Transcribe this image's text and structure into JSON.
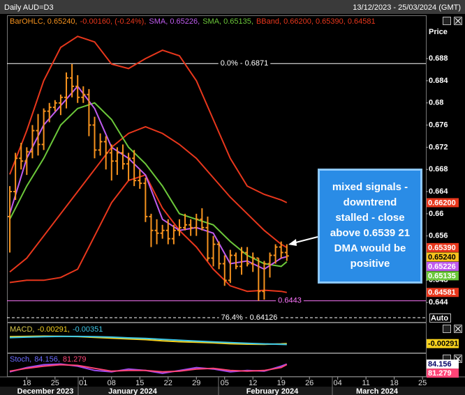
{
  "header": {
    "title": "Daily AUD=D3",
    "range": "13/12/2023 - 25/03/2024 (GMT)"
  },
  "chart_data": [
    {
      "type": "ohlc",
      "legend": [
        {
          "text": "BarOHLC, 0.65240,",
          "color": "#f7931e"
        },
        {
          "text": "-0.00160, (-0.24%),",
          "color": "#e8371c"
        },
        {
          "text": "SMA, 0.65226,",
          "color": "#c05cf0"
        },
        {
          "text": "SMA, 0.65135,",
          "color": "#6cc83a"
        },
        {
          "text": "BBand, 0.66200, 0.65390, 0.64581",
          "color": "#e8371c"
        }
      ],
      "y_axis_label": "Price",
      "auto_label": "Auto",
      "color": "#f7931e",
      "x": [
        0,
        1,
        2,
        3,
        4,
        5,
        6,
        7,
        8,
        9,
        10,
        11,
        12,
        13,
        14,
        15,
        16,
        17,
        18,
        19,
        20,
        21,
        22,
        23,
        24,
        25,
        26,
        27,
        28,
        29,
        30,
        31,
        32,
        33,
        34,
        35,
        36,
        37,
        38,
        39,
        40,
        41,
        42,
        43,
        44,
        45,
        46,
        47,
        48,
        49
      ],
      "open": [
        0.6595,
        0.664,
        0.67,
        0.6695,
        0.6712,
        0.675,
        0.6725,
        0.6785,
        0.6792,
        0.68,
        0.681,
        0.6845,
        0.683,
        0.681,
        0.6815,
        0.676,
        0.6715,
        0.673,
        0.671,
        0.6695,
        0.671,
        0.669,
        0.67,
        0.666,
        0.6655,
        0.6595,
        0.657,
        0.6565,
        0.657,
        0.6555,
        0.657,
        0.6575,
        0.658,
        0.6575,
        0.659,
        0.6575,
        0.652,
        0.6545,
        0.651,
        0.648,
        0.6525,
        0.6505,
        0.653,
        0.651,
        0.652,
        0.646,
        0.651,
        0.6525,
        0.654,
        0.653
      ],
      "high": [
        0.665,
        0.671,
        0.6728,
        0.672,
        0.676,
        0.678,
        0.679,
        0.68,
        0.6805,
        0.6815,
        0.6855,
        0.687,
        0.685,
        0.683,
        0.6825,
        0.6775,
        0.6745,
        0.674,
        0.6725,
        0.672,
        0.6725,
        0.671,
        0.6715,
        0.668,
        0.6665,
        0.66,
        0.659,
        0.658,
        0.659,
        0.658,
        0.659,
        0.66,
        0.659,
        0.66,
        0.661,
        0.6595,
        0.656,
        0.655,
        0.6525,
        0.6535,
        0.653,
        0.654,
        0.654,
        0.653,
        0.652,
        0.6515,
        0.653,
        0.6545,
        0.655,
        0.6545
      ],
      "low": [
        0.653,
        0.6625,
        0.668,
        0.667,
        0.67,
        0.6705,
        0.6715,
        0.6765,
        0.6785,
        0.6778,
        0.679,
        0.681,
        0.68,
        0.68,
        0.674,
        0.67,
        0.6705,
        0.668,
        0.666,
        0.667,
        0.668,
        0.666,
        0.665,
        0.6645,
        0.6585,
        0.654,
        0.6545,
        0.6555,
        0.6545,
        0.6545,
        0.656,
        0.657,
        0.656,
        0.656,
        0.657,
        0.6515,
        0.6505,
        0.65,
        0.647,
        0.6475,
        0.65,
        0.649,
        0.6505,
        0.6495,
        0.6443,
        0.6445,
        0.6485,
        0.651,
        0.652,
        0.6515
      ],
      "close": [
        0.664,
        0.67,
        0.6695,
        0.6712,
        0.675,
        0.6725,
        0.6785,
        0.6792,
        0.68,
        0.681,
        0.6845,
        0.683,
        0.681,
        0.6815,
        0.676,
        0.6715,
        0.673,
        0.671,
        0.6695,
        0.671,
        0.669,
        0.67,
        0.666,
        0.6655,
        0.6595,
        0.657,
        0.6565,
        0.657,
        0.6555,
        0.657,
        0.6575,
        0.658,
        0.6575,
        0.659,
        0.6575,
        0.652,
        0.6545,
        0.651,
        0.648,
        0.6525,
        0.6505,
        0.653,
        0.651,
        0.652,
        0.646,
        0.651,
        0.6525,
        0.654,
        0.653,
        0.6524
      ],
      "xlim": [
        -0.5,
        73.6
      ],
      "ylim": [
        0.6405,
        0.6958
      ],
      "yticks": [
        0.688,
        0.684,
        0.68,
        0.676,
        0.672,
        0.668,
        0.664,
        0.66,
        0.656,
        0.648,
        0.644
      ],
      "xticks": [
        {
          "value": 3,
          "label": "18"
        },
        {
          "value": 8,
          "label": "25"
        },
        {
          "value": 13,
          "label": "01"
        },
        {
          "value": 18,
          "label": "08"
        },
        {
          "value": 23,
          "label": "15"
        },
        {
          "value": 28,
          "label": "22"
        },
        {
          "value": 33,
          "label": "29"
        },
        {
          "value": 38,
          "label": "05"
        },
        {
          "value": 43,
          "label": "12"
        },
        {
          "value": 48,
          "label": "19"
        },
        {
          "value": 53,
          "label": "26"
        },
        {
          "value": 58,
          "label": "04"
        },
        {
          "value": 63,
          "label": "11"
        },
        {
          "value": 68,
          "label": "18"
        },
        {
          "value": 73,
          "label": "25"
        }
      ],
      "months": [
        "December 2023",
        "January 2024",
        "February 2024",
        "March 2024"
      ],
      "lines": {
        "x": [
          0,
          3,
          6,
          9,
          12,
          15,
          18,
          21,
          24,
          27,
          30,
          33,
          36,
          39,
          42,
          45,
          48,
          49
        ],
        "series": [
          {
            "color": "#e8371c",
            "values": [
              0.6671,
              0.675,
              0.684,
              0.69,
              0.692,
              0.691,
              0.687,
              0.6862,
              0.688,
              0.6895,
              0.6885,
              0.684,
              0.677,
              0.67,
              0.665,
              0.6635,
              0.6625,
              0.662
            ]
          },
          {
            "color": "#e8371c",
            "values": [
              0.6495,
              0.652,
              0.656,
              0.66,
              0.664,
              0.668,
              0.672,
              0.6745,
              0.6757,
              0.6745,
              0.6725,
              0.67,
              0.6665,
              0.663,
              0.66,
              0.657,
              0.6545,
              0.6539
            ]
          },
          {
            "color": "#e8371c",
            "values": [
              0.6476,
              0.648,
              0.648,
              0.6485,
              0.65,
              0.656,
              0.662,
              0.666,
              0.667,
              0.661,
              0.657,
              0.654,
              0.65,
              0.647,
              0.646,
              0.6462,
              0.646,
              0.64581
            ]
          },
          {
            "color": "#6cc83a",
            "values": [
              0.659,
              0.665,
              0.67,
              0.676,
              0.679,
              0.68,
              0.677,
              0.672,
              0.669,
              0.665,
              0.66,
              0.659,
              0.658,
              0.655,
              0.6525,
              0.651,
              0.6505,
              0.65135
            ]
          },
          {
            "color": "#c05cf0",
            "values": [
              0.66,
              0.67,
              0.676,
              0.6795,
              0.683,
              0.679,
              0.672,
              0.67,
              0.667,
              0.659,
              0.657,
              0.6575,
              0.6565,
              0.651,
              0.6515,
              0.65,
              0.652,
              0.65226
            ]
          }
        ]
      },
      "price_tags": [
        {
          "value": 0.662,
          "label": "0.66200",
          "color": "#e8371c",
          "text_color": "#ffffff"
        },
        {
          "value": 0.6539,
          "label": "0.65390",
          "color": "#e8371c",
          "text_color": "#ffffff"
        },
        {
          "value": 0.6524,
          "label": "0.65240",
          "color": "#f7c21e",
          "text_color": "#000000"
        },
        {
          "value": 0.65226,
          "label": "0.65226",
          "color": "#c05cf0",
          "text_color": "#ffffff"
        },
        {
          "value": 0.65135,
          "label": "0.65135",
          "color": "#6cc83a",
          "text_color": "#ffffff"
        },
        {
          "value": 0.64581,
          "label": "0.64581",
          "color": "#e8371c",
          "text_color": "#ffffff"
        }
      ],
      "levels": [
        {
          "value": 0.6871,
          "label": "0.0% - 0.6871",
          "color": "#ffffff",
          "dashed": false
        },
        {
          "value": 0.6443,
          "label": "0.6443",
          "color": "#ff77ff",
          "dashed": false
        },
        {
          "value": 0.64126,
          "label": "76.4% - 0.64126",
          "color": "#ffffff",
          "dashed": true
        }
      ],
      "annotation": {
        "lines": [
          "mixed signals -",
          "downtrend",
          "stalled - close",
          "above 0.6539 21",
          "DMA would be",
          "positive"
        ]
      }
    },
    {
      "type": "line",
      "legend": [
        {
          "text": "MACD,",
          "color": "#d8c84a"
        },
        {
          "text": "-0.00291,",
          "color": "#f7d21e"
        },
        {
          "text": "-0.00351",
          "color": "#3ec8e8"
        }
      ],
      "x": [
        0,
        3,
        6,
        9,
        12,
        15,
        18,
        21,
        24,
        27,
        30,
        33,
        36,
        39,
        42,
        45,
        48,
        49
      ],
      "xlim": [
        -0.5,
        73.6
      ],
      "ylim": [
        -0.009,
        0.011
      ],
      "series": [
        {
          "color": "#f7d21e",
          "values": [
            0.0018,
            0.002,
            0.0022,
            0.0021,
            0.0019,
            0.0014,
            0.0008,
            0.0003,
            -0.0002,
            -0.001,
            -0.0016,
            -0.002,
            -0.0024,
            -0.003,
            -0.0033,
            -0.0034,
            -0.0031,
            -0.00291
          ]
        },
        {
          "color": "#3ec8e8",
          "values": [
            0.0012,
            0.0015,
            0.0018,
            0.002,
            0.002,
            0.0018,
            0.0015,
            0.001,
            0.0006,
            0,
            -0.0006,
            -0.0012,
            -0.0017,
            -0.0022,
            -0.0027,
            -0.0031,
            -0.0034,
            -0.00351
          ]
        }
      ],
      "price_tags": [
        {
          "value": -0.00291,
          "label": "-0.00291",
          "color": "#f7d21e",
          "text_color": "#000000"
        }
      ]
    },
    {
      "type": "line",
      "legend": [
        {
          "text": "Stoch,",
          "color": "#6b6bff"
        },
        {
          "text": "84.156,",
          "color": "#6b6bff"
        },
        {
          "text": "81.279",
          "color": "#ff4477"
        }
      ],
      "x": [
        0,
        3,
        6,
        9,
        12,
        15,
        18,
        21,
        24,
        27,
        30,
        33,
        36,
        39,
        42,
        45,
        48,
        49
      ],
      "xlim": [
        -0.5,
        73.6
      ],
      "ylim": [
        0,
        160
      ],
      "series": [
        {
          "color": "#9a4cf0",
          "values": [
            30,
            60,
            80,
            85,
            70,
            40,
            30,
            50,
            40,
            20,
            40,
            60,
            50,
            30,
            40,
            35,
            70,
            84.156
          ]
        },
        {
          "color": "#ff4477",
          "values": [
            35,
            55,
            70,
            80,
            75,
            55,
            35,
            40,
            40,
            30,
            35,
            50,
            55,
            40,
            35,
            40,
            60,
            81.279
          ]
        }
      ],
      "price_tags": [
        {
          "value": 84.156,
          "label": "84.156",
          "color": "#ffffff",
          "text_color": "#000066"
        },
        {
          "value": 81.279,
          "label": "81.279",
          "color": "#ff4477",
          "text_color": "#ffffff"
        }
      ]
    }
  ]
}
